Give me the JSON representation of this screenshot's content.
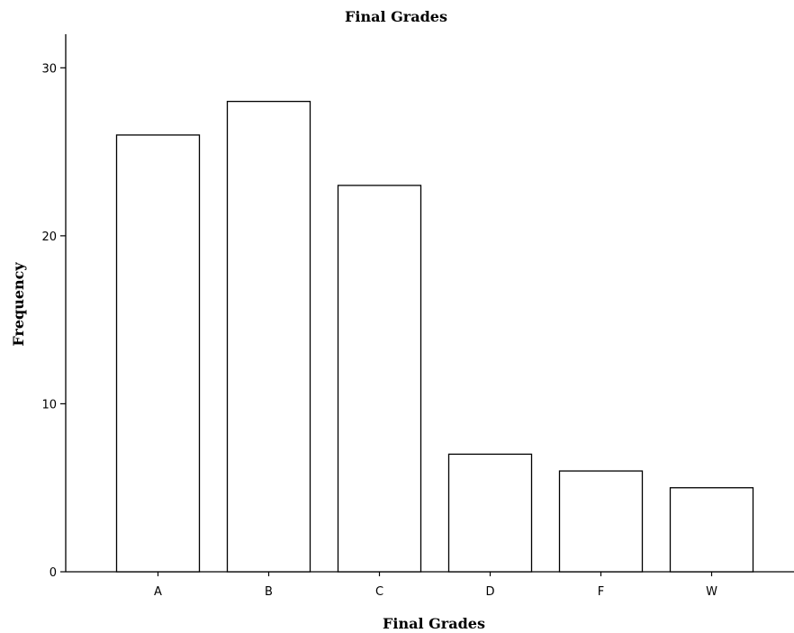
{
  "chart_data": {
    "type": "bar",
    "title": "Final Grades",
    "xlabel": "Final Grades",
    "ylabel": "Frequency",
    "categories": [
      "A",
      "B",
      "C",
      "D",
      "F",
      "W"
    ],
    "values": [
      26,
      28,
      23,
      7,
      6,
      5
    ],
    "ylim": [
      0,
      32
    ],
    "yticks": [
      0,
      10,
      20,
      30
    ],
    "grid": false,
    "bar_fill": "#ffffff",
    "bar_stroke": "#000000"
  }
}
